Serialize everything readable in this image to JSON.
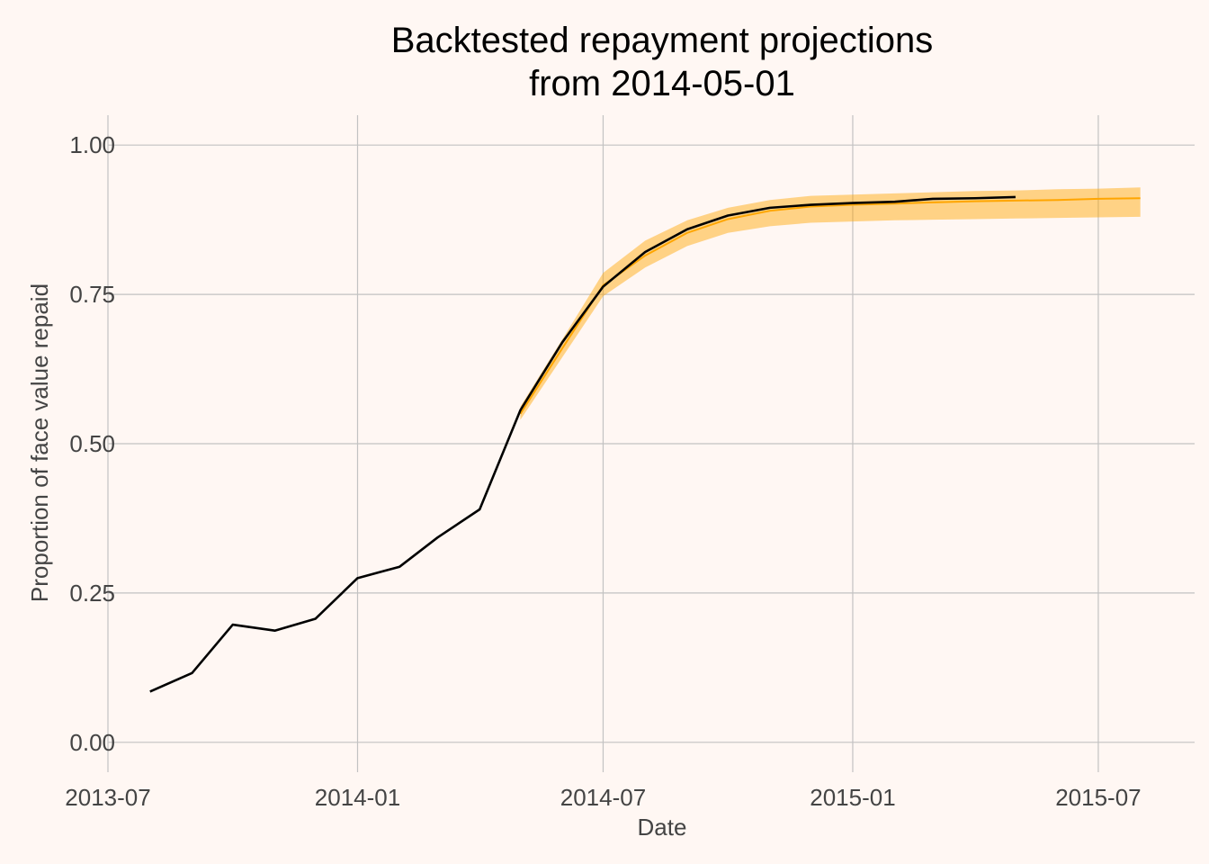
{
  "chart_data": {
    "type": "line",
    "title": [
      "Backtested repayment projections",
      "from 2014-05-01"
    ],
    "xlabel": "Date",
    "ylabel": "Proportion of face value repaid",
    "x_ticks": [
      "2013-07",
      "2014-01",
      "2014-07",
      "2015-01",
      "2015-07"
    ],
    "y_ticks": [
      "0.00",
      "0.25",
      "0.50",
      "0.75",
      "1.00"
    ],
    "xlim": [
      "2013-07-01",
      "2015-09-10"
    ],
    "ylim": [
      -0.05,
      1.05
    ],
    "grid": true,
    "colors": {
      "actual": "#000000",
      "projection": "#ffa500",
      "band": "#ffa500"
    },
    "series": [
      {
        "role": "actual",
        "x": [
          "2013-08-01",
          "2013-09-01",
          "2013-10-01",
          "2013-11-01",
          "2013-12-01",
          "2014-01-01",
          "2014-02-01",
          "2014-03-01",
          "2014-04-01",
          "2014-05-01",
          "2014-06-01",
          "2014-07-01",
          "2014-08-01",
          "2014-09-01",
          "2014-10-01",
          "2014-11-01",
          "2014-12-01",
          "2015-01-01",
          "2015-02-01",
          "2015-03-01",
          "2015-04-01",
          "2015-05-01"
        ],
        "y": [
          0.085,
          0.116,
          0.197,
          0.187,
          0.207,
          0.275,
          0.294,
          0.343,
          0.39,
          0.556,
          0.67,
          0.763,
          0.821,
          0.859,
          0.882,
          0.895,
          0.9,
          0.903,
          0.905,
          0.91,
          0.911,
          0.913
        ]
      },
      {
        "role": "projection",
        "x": [
          "2014-05-01",
          "2014-06-01",
          "2014-07-01",
          "2014-08-01",
          "2014-09-01",
          "2014-10-01",
          "2014-11-01",
          "2014-12-01",
          "2015-01-01",
          "2015-02-01",
          "2015-03-01",
          "2015-04-01",
          "2015-05-01",
          "2015-06-01",
          "2015-07-01",
          "2015-08-01"
        ],
        "y": [
          0.55,
          0.66,
          0.765,
          0.815,
          0.853,
          0.876,
          0.89,
          0.897,
          0.9,
          0.902,
          0.904,
          0.906,
          0.907,
          0.908,
          0.91,
          0.911
        ],
        "lower": [
          0.54,
          0.645,
          0.747,
          0.795,
          0.831,
          0.853,
          0.864,
          0.87,
          0.872,
          0.874,
          0.875,
          0.876,
          0.877,
          0.878,
          0.879,
          0.88
        ],
        "upper": [
          0.562,
          0.675,
          0.786,
          0.84,
          0.874,
          0.895,
          0.908,
          0.915,
          0.917,
          0.919,
          0.921,
          0.923,
          0.924,
          0.926,
          0.927,
          0.929
        ]
      }
    ]
  }
}
